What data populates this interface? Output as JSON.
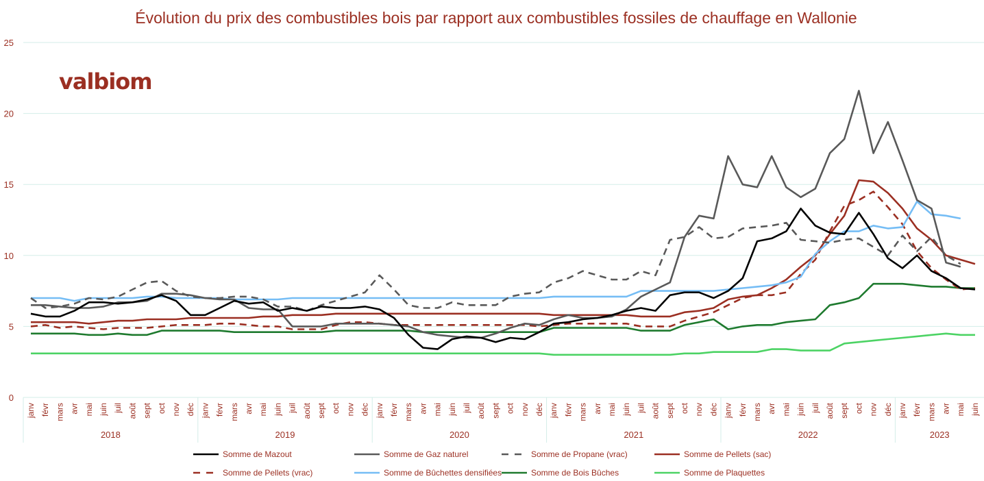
{
  "logo": "valbiom",
  "chart_data": {
    "type": "line",
    "title": "Évolution du prix des combustibles bois par rapport aux combustibles fossiles de chauffage en Wallonie",
    "xlabel": "",
    "ylabel": "",
    "ylim": [
      0,
      25
    ],
    "yticks": [
      0,
      5,
      10,
      15,
      20,
      25
    ],
    "grid": true,
    "legend_position": "bottom",
    "years": [
      {
        "label": "2018",
        "months": 12
      },
      {
        "label": "2019",
        "months": 12
      },
      {
        "label": "2020",
        "months": 12
      },
      {
        "label": "2021",
        "months": 12
      },
      {
        "label": "2022",
        "months": 12
      },
      {
        "label": "2023",
        "months": 6
      }
    ],
    "month_labels": [
      "janv",
      "févr",
      "mars",
      "avr",
      "mai",
      "juin",
      "juil",
      "août",
      "sept",
      "oct",
      "nov",
      "déc"
    ],
    "series": [
      {
        "name": "Somme de Mazout",
        "color": "#000000",
        "dash": false,
        "values": [
          5.9,
          5.7,
          5.7,
          6.1,
          6.7,
          6.7,
          6.6,
          6.7,
          6.9,
          7.2,
          6.8,
          5.8,
          5.8,
          6.3,
          6.8,
          6.6,
          6.7,
          6.1,
          6.3,
          6.1,
          6.4,
          6.3,
          6.3,
          6.4,
          6.2,
          5.6,
          4.4,
          3.5,
          3.4,
          4.1,
          4.3,
          4.2,
          3.9,
          4.2,
          4.1,
          4.6,
          5.2,
          5.3,
          5.5,
          5.6,
          5.8,
          6.1,
          6.3,
          6.1,
          7.2,
          7.4,
          7.4,
          7.0,
          7.5,
          8.4,
          11.0,
          11.2,
          11.7,
          13.3,
          12.1,
          11.6,
          11.5,
          13.0,
          11.5,
          9.8,
          9.1,
          10.0,
          8.9,
          8.4,
          7.7,
          7.6
        ]
      },
      {
        "name": "Somme de Gaz naturel",
        "color": "#595959",
        "dash": false,
        "values": [
          6.5,
          6.5,
          6.4,
          6.3,
          6.3,
          6.4,
          6.7,
          6.7,
          6.8,
          7.3,
          7.3,
          7.2,
          7.0,
          6.9,
          6.9,
          6.3,
          6.2,
          6.2,
          5.0,
          5.0,
          5.0,
          5.2,
          5.2,
          5.2,
          5.2,
          5.1,
          5.0,
          4.6,
          4.4,
          4.3,
          4.2,
          4.2,
          4.5,
          4.9,
          5.2,
          5.1,
          5.5,
          5.8,
          5.6,
          5.6,
          5.7,
          6.2,
          7.1,
          7.6,
          8.1,
          11.3,
          12.8,
          12.6,
          17.0,
          15.0,
          14.8,
          17.0,
          14.8,
          14.1,
          14.7,
          17.2,
          18.2,
          21.6,
          17.2,
          19.4,
          16.7,
          13.9,
          13.3,
          9.5,
          9.2,
          null
        ]
      },
      {
        "name": "Somme de Propane (vrac)",
        "color": "#595959",
        "dash": true,
        "values": [
          7.0,
          6.3,
          6.4,
          6.6,
          7.0,
          6.9,
          7.1,
          7.6,
          8.1,
          8.2,
          7.5,
          7.1,
          7.0,
          7.0,
          7.1,
          7.1,
          6.9,
          6.4,
          6.4,
          6.1,
          6.5,
          6.8,
          7.1,
          7.4,
          8.6,
          7.6,
          6.5,
          6.3,
          6.3,
          6.7,
          6.5,
          6.5,
          6.5,
          7.1,
          7.3,
          7.4,
          8.1,
          8.4,
          8.9,
          8.6,
          8.3,
          8.3,
          8.9,
          8.6,
          11.1,
          11.3,
          12.0,
          11.2,
          11.3,
          11.9,
          12.0,
          12.1,
          12.3,
          11.1,
          11.0,
          10.9,
          11.1,
          11.2,
          10.6,
          10.0,
          11.4,
          10.3,
          11.3,
          10.0,
          9.4,
          null
        ]
      },
      {
        "name": "Somme de Pellets (sac)",
        "color": "#9b2f22",
        "dash": false,
        "values": [
          5.3,
          5.3,
          5.3,
          5.3,
          5.2,
          5.3,
          5.4,
          5.4,
          5.5,
          5.5,
          5.5,
          5.6,
          5.6,
          5.6,
          5.6,
          5.6,
          5.7,
          5.7,
          5.8,
          5.8,
          5.8,
          5.9,
          5.9,
          5.9,
          5.9,
          5.9,
          5.9,
          5.9,
          5.9,
          5.9,
          5.9,
          5.9,
          5.9,
          5.9,
          5.9,
          5.9,
          5.8,
          5.8,
          5.8,
          5.8,
          5.8,
          5.8,
          5.7,
          5.7,
          5.7,
          6.0,
          6.1,
          6.3,
          6.9,
          7.1,
          7.2,
          7.7,
          8.3,
          9.2,
          10.0,
          11.5,
          12.8,
          15.3,
          15.2,
          14.4,
          13.3,
          11.9,
          11.1,
          10.0,
          9.7,
          9.4
        ]
      },
      {
        "name": "Somme de Pellets (vrac)",
        "color": "#9b2f22",
        "dash": true,
        "values": [
          5.0,
          5.1,
          4.9,
          5.0,
          4.9,
          4.8,
          4.9,
          4.9,
          4.9,
          5.0,
          5.1,
          5.1,
          5.1,
          5.2,
          5.2,
          5.1,
          5.0,
          5.0,
          4.8,
          4.8,
          4.8,
          5.1,
          5.3,
          5.3,
          5.2,
          5.1,
          5.1,
          5.1,
          5.1,
          5.1,
          5.1,
          5.1,
          5.1,
          5.1,
          5.1,
          5.0,
          5.1,
          5.2,
          5.2,
          5.2,
          5.2,
          5.2,
          5.0,
          5.0,
          5.0,
          5.4,
          5.7,
          6.0,
          6.5,
          7.0,
          7.2,
          7.2,
          7.4,
          8.7,
          9.7,
          11.7,
          13.5,
          13.9,
          14.5,
          13.4,
          12.2,
          10.3,
          9.1,
          8.3,
          7.6,
          7.7
        ]
      },
      {
        "name": "Somme de Bûchettes densifiées",
        "color": "#75bdf5",
        "dash": false,
        "values": [
          7.0,
          7.0,
          7.0,
          6.8,
          7.0,
          7.0,
          7.0,
          7.0,
          7.1,
          7.1,
          7.0,
          7.0,
          7.0,
          7.0,
          6.9,
          6.9,
          6.9,
          6.9,
          7.0,
          7.0,
          7.0,
          7.0,
          7.0,
          7.0,
          7.0,
          7.0,
          7.0,
          7.0,
          7.0,
          7.0,
          7.0,
          7.0,
          7.0,
          7.0,
          7.0,
          7.0,
          7.1,
          7.1,
          7.1,
          7.1,
          7.1,
          7.1,
          7.5,
          7.5,
          7.5,
          7.5,
          7.5,
          7.5,
          7.6,
          7.7,
          7.8,
          7.9,
          8.1,
          8.5,
          10.1,
          11.0,
          11.7,
          11.7,
          12.1,
          11.9,
          12.0,
          13.8,
          12.9,
          12.8,
          12.6,
          null
        ]
      },
      {
        "name": "Somme de Bois Bûches",
        "color": "#1e7a2e",
        "dash": false,
        "values": [
          4.5,
          4.5,
          4.5,
          4.5,
          4.4,
          4.4,
          4.5,
          4.4,
          4.4,
          4.7,
          4.7,
          4.7,
          4.7,
          4.7,
          4.6,
          4.6,
          4.6,
          4.6,
          4.6,
          4.6,
          4.6,
          4.7,
          4.7,
          4.7,
          4.7,
          4.7,
          4.7,
          4.6,
          4.6,
          4.6,
          4.6,
          4.6,
          4.6,
          4.6,
          4.6,
          4.6,
          4.9,
          4.9,
          4.9,
          4.9,
          4.9,
          4.9,
          4.7,
          4.7,
          4.7,
          5.1,
          5.3,
          5.5,
          4.8,
          5.0,
          5.1,
          5.1,
          5.3,
          5.4,
          5.5,
          6.5,
          6.7,
          7.0,
          8.0,
          8.0,
          8.0,
          7.9,
          7.8,
          7.8,
          7.7,
          7.7
        ]
      },
      {
        "name": "Somme de Plaquettes",
        "color": "#4cd364",
        "dash": false,
        "values": [
          3.1,
          3.1,
          3.1,
          3.1,
          3.1,
          3.1,
          3.1,
          3.1,
          3.1,
          3.1,
          3.1,
          3.1,
          3.1,
          3.1,
          3.1,
          3.1,
          3.1,
          3.1,
          3.1,
          3.1,
          3.1,
          3.1,
          3.1,
          3.1,
          3.1,
          3.1,
          3.1,
          3.1,
          3.1,
          3.1,
          3.1,
          3.1,
          3.1,
          3.1,
          3.1,
          3.1,
          3.0,
          3.0,
          3.0,
          3.0,
          3.0,
          3.0,
          3.0,
          3.0,
          3.0,
          3.1,
          3.1,
          3.2,
          3.2,
          3.2,
          3.2,
          3.4,
          3.4,
          3.3,
          3.3,
          3.3,
          3.8,
          3.9,
          4.0,
          4.1,
          4.2,
          4.3,
          4.4,
          4.5,
          4.4,
          4.4
        ]
      }
    ]
  }
}
